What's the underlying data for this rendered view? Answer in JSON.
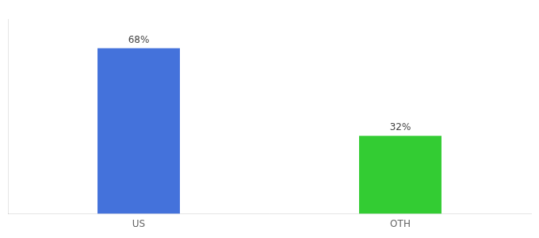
{
  "chart_data": {
    "type": "bar",
    "categories": [
      "US",
      "OTH"
    ],
    "values": [
      68,
      32
    ],
    "value_labels": [
      "68%",
      "32%"
    ],
    "colors": [
      "#4472db",
      "#33cc33"
    ],
    "ylim": [
      0,
      80
    ],
    "grid": false,
    "tick_labels": "x",
    "data_labels": true
  }
}
